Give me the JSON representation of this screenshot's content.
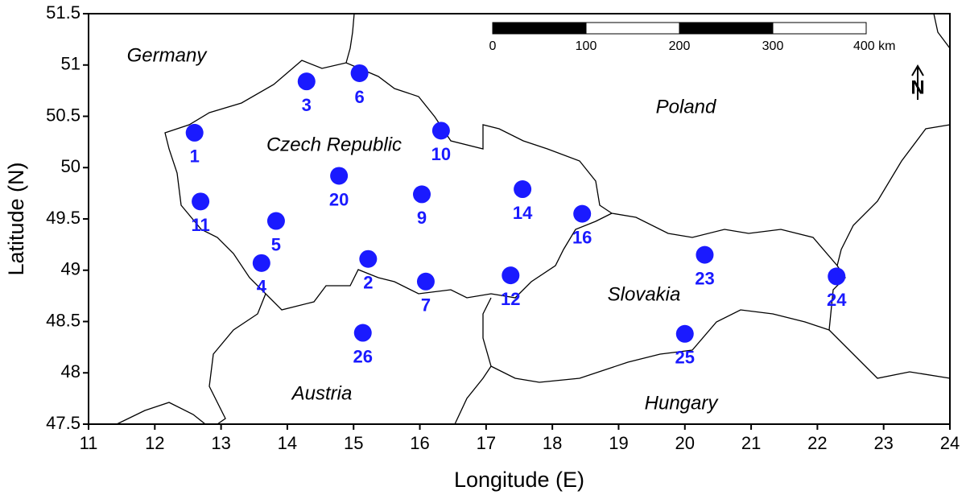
{
  "chart_data": {
    "type": "scatter",
    "xlabel": "Longitude (E)",
    "ylabel": "Latitude (N)",
    "xlim": [
      11,
      24
    ],
    "ylim": [
      47.5,
      51.5
    ],
    "xticks": [
      11,
      12,
      13,
      14,
      15,
      16,
      17,
      18,
      19,
      20,
      21,
      22,
      23,
      24
    ],
    "yticks": [
      47.5,
      48,
      48.5,
      49,
      49.5,
      50,
      50.5,
      51,
      51.5
    ],
    "color": "#1a1aff",
    "points": {
      "labels": [
        "1",
        "3",
        "6",
        "10",
        "20",
        "9",
        "14",
        "16",
        "11",
        "5",
        "4",
        "2",
        "7",
        "12",
        "23",
        "24",
        "25",
        "26"
      ],
      "x": [
        12.6,
        14.29,
        15.09,
        16.32,
        14.78,
        16.03,
        17.55,
        18.45,
        12.69,
        13.83,
        13.61,
        15.22,
        16.09,
        17.37,
        20.3,
        22.29,
        20.0,
        15.14
      ],
      "y": [
        50.34,
        50.84,
        50.92,
        50.36,
        49.92,
        49.74,
        49.79,
        49.55,
        49.67,
        49.48,
        49.07,
        49.11,
        48.89,
        48.95,
        49.15,
        48.94,
        48.38,
        48.39
      ]
    },
    "countries": [
      "Germany",
      "Poland",
      "Czech Republic",
      "Slovakia",
      "Austria",
      "Hungary"
    ],
    "scale_bar_labels": [
      "0",
      "100",
      "200",
      "300",
      "400 km"
    ],
    "north_label": "N"
  }
}
